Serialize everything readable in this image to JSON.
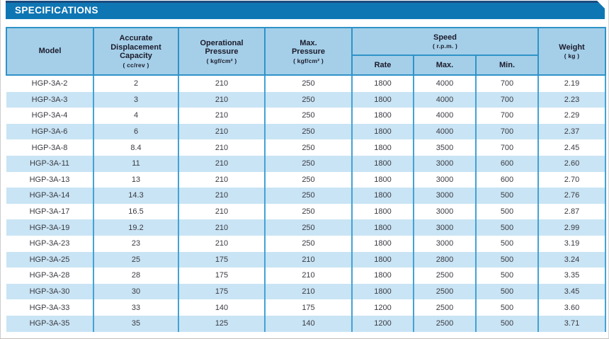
{
  "banner": {
    "title": "SPECIFICATIONS"
  },
  "table": {
    "headers": {
      "model": {
        "title": "Model"
      },
      "displacement": {
        "title": "Accurate\nDisplacement\nCapacity",
        "unit": "( cc/rev )"
      },
      "operational_pressure": {
        "title": "Operational\nPressure",
        "unit": "( kgf/cm² )"
      },
      "max_pressure": {
        "title": "Max.\nPressure",
        "unit": "( kgf/cm² )"
      },
      "speed": {
        "title": "Speed",
        "unit": "( r.p.m. )",
        "sub": {
          "rate": "Rate",
          "max": "Max.",
          "min": "Min."
        }
      },
      "weight": {
        "title": "Weight",
        "unit": "( kg )"
      }
    },
    "col_ids": [
      "model",
      "displacement",
      "operational_pressure",
      "max_pressure",
      "speed_rate",
      "speed_max",
      "speed_min",
      "weight"
    ],
    "rows": [
      [
        "HGP-3A-2",
        "2",
        "210",
        "250",
        "1800",
        "4000",
        "700",
        "2.19"
      ],
      [
        "HGP-3A-3",
        "3",
        "210",
        "250",
        "1800",
        "4000",
        "700",
        "2.23"
      ],
      [
        "HGP-3A-4",
        "4",
        "210",
        "250",
        "1800",
        "4000",
        "700",
        "2.29"
      ],
      [
        "HGP-3A-6",
        "6",
        "210",
        "250",
        "1800",
        "4000",
        "700",
        "2.37"
      ],
      [
        "HGP-3A-8",
        "8.4",
        "210",
        "250",
        "1800",
        "3500",
        "700",
        "2.45"
      ],
      [
        "HGP-3A-11",
        "11",
        "210",
        "250",
        "1800",
        "3000",
        "600",
        "2.60"
      ],
      [
        "HGP-3A-13",
        "13",
        "210",
        "250",
        "1800",
        "3000",
        "600",
        "2.70"
      ],
      [
        "HGP-3A-14",
        "14.3",
        "210",
        "250",
        "1800",
        "3000",
        "500",
        "2.76"
      ],
      [
        "HGP-3A-17",
        "16.5",
        "210",
        "250",
        "1800",
        "3000",
        "500",
        "2.87"
      ],
      [
        "HGP-3A-19",
        "19.2",
        "210",
        "250",
        "1800",
        "3000",
        "500",
        "2.99"
      ],
      [
        "HGP-3A-23",
        "23",
        "210",
        "250",
        "1800",
        "3000",
        "500",
        "3.19"
      ],
      [
        "HGP-3A-25",
        "25",
        "175",
        "210",
        "1800",
        "2800",
        "500",
        "3.24"
      ],
      [
        "HGP-3A-28",
        "28",
        "175",
        "210",
        "1800",
        "2500",
        "500",
        "3.35"
      ],
      [
        "HGP-3A-30",
        "30",
        "175",
        "210",
        "1800",
        "2500",
        "500",
        "3.45"
      ],
      [
        "HGP-3A-33",
        "33",
        "140",
        "175",
        "1200",
        "2500",
        "500",
        "3.60"
      ],
      [
        "HGP-3A-35",
        "35",
        "125",
        "140",
        "1200",
        "2500",
        "500",
        "3.71"
      ]
    ]
  }
}
